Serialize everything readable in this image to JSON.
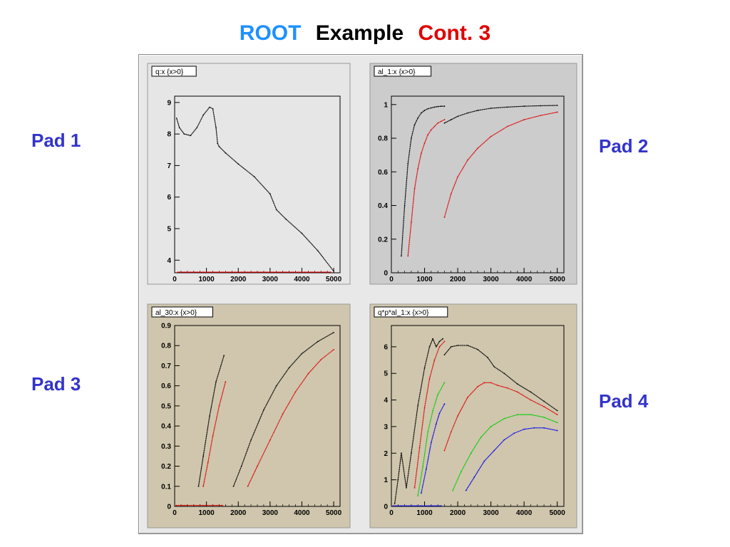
{
  "slide": {
    "title_parts": [
      {
        "text": "ROOT",
        "color": "#1e90ff"
      },
      {
        "text": "Example",
        "color": "#000000"
      },
      {
        "text": "Cont. 3",
        "color": "#e00000"
      }
    ],
    "pad_labels": [
      "Pad 1",
      "Pad 2",
      "Pad 3",
      "Pad 4"
    ],
    "pad_label_color": "#3333cc"
  },
  "chart_data": [
    {
      "type": "scatter",
      "title": "q:x {x>0}",
      "xlim": [
        0,
        5200
      ],
      "ylim": [
        3.6,
        9.2
      ],
      "xticks": [
        0,
        1000,
        2000,
        3000,
        4000,
        5000
      ],
      "yticks": [
        4,
        5,
        6,
        7,
        8,
        9
      ],
      "background": "#e6e6e6",
      "series": [
        {
          "color": "#000000",
          "x": [
            60,
            150,
            300,
            500,
            700,
            900,
            1100,
            1200,
            1300,
            1350,
            1400,
            1600,
            2000,
            2500,
            3000,
            3200,
            3500,
            4000,
            4500,
            5000
          ],
          "y": [
            8.5,
            8.2,
            8.0,
            7.95,
            8.2,
            8.6,
            8.85,
            8.8,
            8.2,
            7.7,
            7.6,
            7.4,
            7.05,
            6.65,
            6.1,
            5.6,
            5.3,
            4.85,
            4.3,
            3.65
          ]
        },
        {
          "color": "#e00000",
          "x": [
            100,
            300,
            500,
            700,
            900,
            1100,
            1300,
            1500,
            1700,
            1900,
            2100,
            2300,
            2500,
            2700,
            2900,
            3100,
            3300,
            3500,
            3700,
            3900,
            4100,
            4300,
            4500,
            4700,
            4900
          ],
          "y": [
            3.62,
            3.62,
            3.62,
            3.62,
            3.62,
            3.62,
            3.62,
            3.62,
            3.62,
            3.62,
            3.62,
            3.62,
            3.62,
            3.62,
            3.62,
            3.62,
            3.62,
            3.62,
            3.62,
            3.62,
            3.62,
            3.62,
            3.62,
            3.62,
            3.62
          ]
        }
      ]
    },
    {
      "type": "scatter",
      "title": "al_1:x {x>0}",
      "xlim": [
        0,
        5200
      ],
      "ylim": [
        0,
        1.05
      ],
      "xticks": [
        0,
        1000,
        2000,
        3000,
        4000,
        5000
      ],
      "yticks": [
        0,
        0.2,
        0.4,
        0.6,
        0.8,
        1
      ],
      "background": "#cccccc",
      "series": [
        {
          "color": "#000000",
          "x": [
            300,
            400,
            500,
            600,
            700,
            800,
            900,
            1000,
            1100,
            1200,
            1300,
            1400,
            1500,
            1600
          ],
          "y": [
            0.1,
            0.4,
            0.65,
            0.8,
            0.88,
            0.92,
            0.95,
            0.965,
            0.975,
            0.98,
            0.985,
            0.988,
            0.99,
            0.99
          ]
        },
        {
          "color": "#000000",
          "x": [
            1600,
            1800,
            2000,
            2300,
            2600,
            3000,
            3500,
            4000,
            4500,
            5000
          ],
          "y": [
            0.89,
            0.91,
            0.93,
            0.95,
            0.965,
            0.978,
            0.985,
            0.99,
            0.993,
            0.995
          ]
        },
        {
          "color": "#e00000",
          "x": [
            500,
            600,
            700,
            800,
            900,
            1000,
            1100,
            1200,
            1300,
            1400,
            1500,
            1600
          ],
          "y": [
            0.1,
            0.3,
            0.5,
            0.62,
            0.71,
            0.77,
            0.82,
            0.85,
            0.87,
            0.89,
            0.9,
            0.91
          ]
        },
        {
          "color": "#e00000",
          "x": [
            1600,
            1800,
            2000,
            2300,
            2600,
            3000,
            3500,
            4000,
            4500,
            5000
          ],
          "y": [
            0.33,
            0.47,
            0.57,
            0.67,
            0.74,
            0.81,
            0.87,
            0.91,
            0.935,
            0.955
          ]
        }
      ]
    },
    {
      "type": "scatter",
      "title": "al_30:x {x>0}",
      "xlim": [
        0,
        5200
      ],
      "ylim": [
        0,
        0.9
      ],
      "xticks": [
        0,
        1000,
        2000,
        3000,
        4000,
        5000
      ],
      "yticks": [
        0,
        0.1,
        0.2,
        0.3,
        0.4,
        0.5,
        0.6,
        0.7,
        0.8,
        0.9
      ],
      "background": "#cfc6ad",
      "series": [
        {
          "color": "#000000",
          "x": [
            750,
            900,
            1100,
            1300,
            1550
          ],
          "y": [
            0.1,
            0.25,
            0.45,
            0.62,
            0.75
          ]
        },
        {
          "color": "#000000",
          "x": [
            1850,
            2100,
            2400,
            2800,
            3200,
            3600,
            4000,
            4500,
            5000
          ],
          "y": [
            0.1,
            0.2,
            0.33,
            0.48,
            0.6,
            0.69,
            0.76,
            0.82,
            0.865
          ]
        },
        {
          "color": "#e00000",
          "x": [
            900,
            1050,
            1200,
            1400,
            1600
          ],
          "y": [
            0.1,
            0.22,
            0.35,
            0.5,
            0.62
          ]
        },
        {
          "color": "#e00000",
          "x": [
            2300,
            2600,
            3000,
            3400,
            3800,
            4200,
            4600,
            5000
          ],
          "y": [
            0.1,
            0.2,
            0.33,
            0.46,
            0.57,
            0.66,
            0.73,
            0.78
          ]
        },
        {
          "color": "#e00000",
          "x": [
            50,
            300,
            600,
            900,
            1200,
            1500
          ],
          "y": [
            0.005,
            0.005,
            0.005,
            0.005,
            0.005,
            0.005
          ]
        }
      ]
    },
    {
      "type": "scatter",
      "title": "q*p*al_1:x {x>0}",
      "xlim": [
        0,
        5200
      ],
      "ylim": [
        0,
        6.8
      ],
      "xticks": [
        0,
        1000,
        2000,
        3000,
        4000,
        5000
      ],
      "yticks": [
        0,
        1,
        2,
        3,
        4,
        5,
        6
      ],
      "background": "#cfc6ad",
      "series": [
        {
          "color": "#000000",
          "x": [
            100,
            200,
            300,
            450,
            600,
            800,
            1000,
            1150,
            1250,
            1350,
            1450,
            1550
          ],
          "y": [
            0.1,
            1.0,
            2.0,
            0.7,
            2.0,
            3.8,
            5.2,
            6.0,
            6.3,
            6.0,
            6.2,
            6.3
          ]
        },
        {
          "color": "#000000",
          "x": [
            1600,
            1800,
            2000,
            2300,
            2600,
            2900,
            3100,
            3400,
            3800,
            4200,
            4600,
            5000
          ],
          "y": [
            5.7,
            6.0,
            6.05,
            6.05,
            5.9,
            5.6,
            5.25,
            5.0,
            4.6,
            4.3,
            3.95,
            3.6
          ]
        },
        {
          "color": "#e00000",
          "x": [
            700,
            850,
            1000,
            1150,
            1300,
            1450,
            1600
          ],
          "y": [
            0.7,
            2.2,
            3.7,
            4.8,
            5.5,
            6.0,
            6.2
          ]
        },
        {
          "color": "#e00000",
          "x": [
            1600,
            1800,
            2000,
            2300,
            2600,
            2800,
            3000,
            3200,
            3500,
            3800,
            4200,
            4600,
            5000
          ],
          "y": [
            2.1,
            2.8,
            3.4,
            4.1,
            4.5,
            4.65,
            4.65,
            4.55,
            4.45,
            4.3,
            4.0,
            3.75,
            3.45
          ]
        },
        {
          "color": "#00cc00",
          "x": [
            800,
            950,
            1100,
            1250,
            1400,
            1600
          ],
          "y": [
            0.4,
            1.5,
            2.8,
            3.6,
            4.2,
            4.65
          ]
        },
        {
          "color": "#00cc00",
          "x": [
            1850,
            2100,
            2400,
            2700,
            3000,
            3400,
            3800,
            4200,
            4600,
            5000
          ],
          "y": [
            0.6,
            1.3,
            2.0,
            2.6,
            3.0,
            3.3,
            3.45,
            3.45,
            3.35,
            3.15
          ]
        },
        {
          "color": "#0000ee",
          "x": [
            900,
            1050,
            1200,
            1350,
            1450,
            1600
          ],
          "y": [
            0.5,
            1.4,
            2.4,
            3.1,
            3.5,
            3.85
          ]
        },
        {
          "color": "#0000ee",
          "x": [
            2250,
            2500,
            2800,
            3100,
            3400,
            3700,
            4000,
            4300,
            4600,
            5000
          ],
          "y": [
            0.6,
            1.1,
            1.7,
            2.1,
            2.5,
            2.75,
            2.9,
            2.95,
            2.95,
            2.85
          ]
        },
        {
          "color": "#0000ee",
          "x": [
            50,
            300,
            600,
            900,
            1200,
            1500
          ],
          "y": [
            0.02,
            0.02,
            0.02,
            0.02,
            0.02,
            0.02
          ]
        }
      ]
    }
  ]
}
